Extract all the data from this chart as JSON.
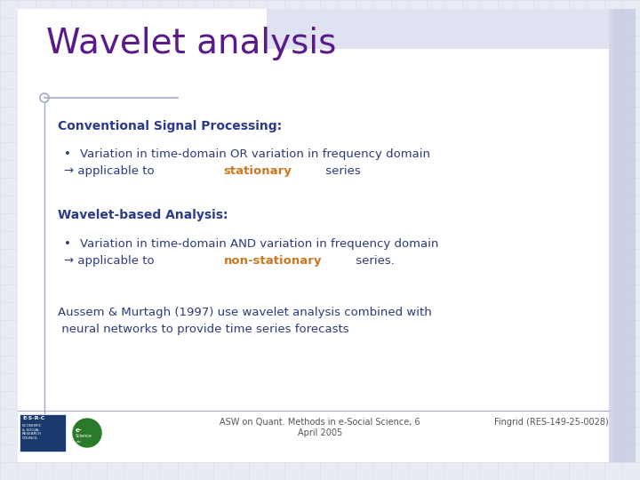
{
  "title": "Wavelet analysis",
  "title_color": "#5B1A8B",
  "title_fontsize": 28,
  "bg_color": "#E8EBF4",
  "slide_bg": "#E8EBF4",
  "content_bg": "#FFFFFF",
  "grid_color": "#C8CEDF",
  "section1_label": "Conventional Signal Processing:",
  "section1_color": "#2B3A8B",
  "bullet1_line1": "Variation in time-domain OR variation in frequency domain",
  "bullet1_line2_prefix": "→ applicable to ",
  "bullet1_highlight": "stationary",
  "bullet1_line2_suffix": " series",
  "highlight1_color": "#CC7722",
  "section2_label": "Wavelet-based Analysis:",
  "section2_color": "#2B3A8B",
  "bullet2_line1": "Variation in time-domain AND variation in frequency domain",
  "bullet2_line2_prefix": "→ applicable to ",
  "bullet2_highlight": "non-stationary",
  "bullet2_line2_suffix": " series.",
  "highlight2_color": "#CC7722",
  "closing_line1": "Aussem & Murtagh (1997) use wavelet analysis combined with",
  "closing_line2": " neural networks to provide time series forecasts",
  "footer_center": "ASW on Quant. Methods in e-Social Science, 6\nApril 2005",
  "footer_right": "Fingrid (RES-149-25-0028)",
  "text_color": "#2B3A7A",
  "body_fontsize": 9.5,
  "section_fontsize": 10,
  "footer_fontsize": 7,
  "accent_color": "#A0AACC",
  "right_bar_color": "#BFC8E0",
  "top_bar_color": "#C8D0E8"
}
